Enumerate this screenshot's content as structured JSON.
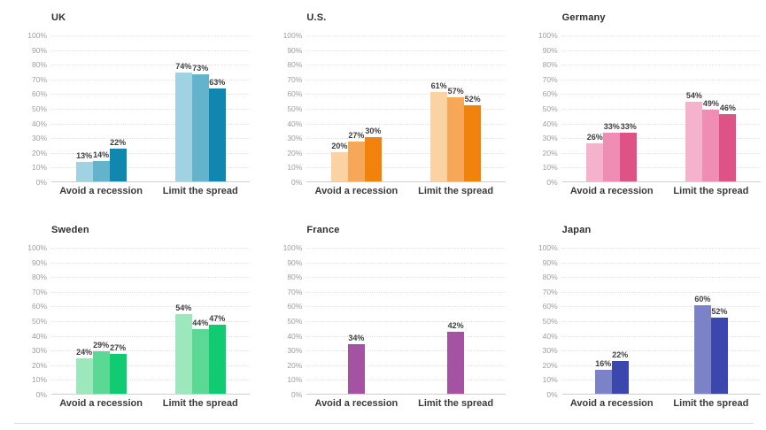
{
  "chart_data": [
    {
      "type": "bar",
      "title": "UK",
      "categories": [
        "Avoid a recession",
        "Limit the spread"
      ],
      "series": [
        {
          "color": "#a0d2e2",
          "values": [
            13,
            74
          ]
        },
        {
          "color": "#64b3cc",
          "values": [
            14,
            73
          ]
        },
        {
          "color": "#0f87ae",
          "values": [
            22,
            63
          ]
        }
      ],
      "ylim": [
        0,
        100
      ],
      "y_ticks": [
        "0%",
        "10%",
        "20%",
        "30%",
        "40%",
        "50%",
        "60%",
        "70%",
        "80%",
        "90%",
        "100%"
      ],
      "grid": true,
      "legend": false,
      "value_label_suffix": "%"
    },
    {
      "type": "bar",
      "title": "U.S.",
      "categories": [
        "Avoid a recession",
        "Limit the spread"
      ],
      "series": [
        {
          "color": "#fbd2a2",
          "values": [
            20,
            61
          ]
        },
        {
          "color": "#f6a757",
          "values": [
            27,
            57
          ]
        },
        {
          "color": "#f1830d",
          "values": [
            30,
            52
          ]
        }
      ],
      "ylim": [
        0,
        100
      ],
      "y_ticks": [
        "0%",
        "10%",
        "20%",
        "30%",
        "40%",
        "50%",
        "60%",
        "70%",
        "80%",
        "90%",
        "100%"
      ],
      "grid": true,
      "legend": false,
      "value_label_suffix": "%"
    },
    {
      "type": "bar",
      "title": "Germany",
      "categories": [
        "Avoid a recession",
        "Limit the spread"
      ],
      "series": [
        {
          "color": "#f4b3cb",
          "values": [
            26,
            54
          ]
        },
        {
          "color": "#ef8db5",
          "values": [
            33,
            49
          ]
        },
        {
          "color": "#df5286",
          "values": [
            33,
            46
          ]
        }
      ],
      "ylim": [
        0,
        100
      ],
      "y_ticks": [
        "0%",
        "10%",
        "20%",
        "30%",
        "40%",
        "50%",
        "60%",
        "70%",
        "80%",
        "90%",
        "100%"
      ],
      "grid": true,
      "legend": false,
      "value_label_suffix": "%"
    },
    {
      "type": "bar",
      "title": "Sweden",
      "categories": [
        "Avoid a recession",
        "Limit the spread"
      ],
      "series": [
        {
          "color": "#9de7bd",
          "values": [
            24,
            54
          ]
        },
        {
          "color": "#5ad994",
          "values": [
            29,
            44
          ]
        },
        {
          "color": "#10cb72",
          "values": [
            27,
            47
          ]
        }
      ],
      "ylim": [
        0,
        100
      ],
      "y_ticks": [
        "0%",
        "10%",
        "20%",
        "30%",
        "40%",
        "50%",
        "60%",
        "70%",
        "80%",
        "90%",
        "100%"
      ],
      "grid": true,
      "legend": false,
      "value_label_suffix": "%"
    },
    {
      "type": "bar",
      "title": "France",
      "categories": [
        "Avoid a recession",
        "Limit the spread"
      ],
      "series": [
        {
          "color": "#a452a2",
          "values": [
            34,
            42
          ]
        }
      ],
      "ylim": [
        0,
        100
      ],
      "y_ticks": [
        "0%",
        "10%",
        "20%",
        "30%",
        "40%",
        "50%",
        "60%",
        "70%",
        "80%",
        "90%",
        "100%"
      ],
      "grid": true,
      "legend": false,
      "value_label_suffix": "%"
    },
    {
      "type": "bar",
      "title": "Japan",
      "categories": [
        "Avoid a recession",
        "Limit the spread"
      ],
      "series": [
        {
          "color": "#7b82c6",
          "values": [
            16,
            60
          ]
        },
        {
          "color": "#3b47ad",
          "values": [
            22,
            52
          ]
        }
      ],
      "ylim": [
        0,
        100
      ],
      "y_ticks": [
        "0%",
        "10%",
        "20%",
        "30%",
        "40%",
        "50%",
        "60%",
        "70%",
        "80%",
        "90%",
        "100%"
      ],
      "grid": true,
      "legend": false,
      "value_label_suffix": "%"
    }
  ]
}
